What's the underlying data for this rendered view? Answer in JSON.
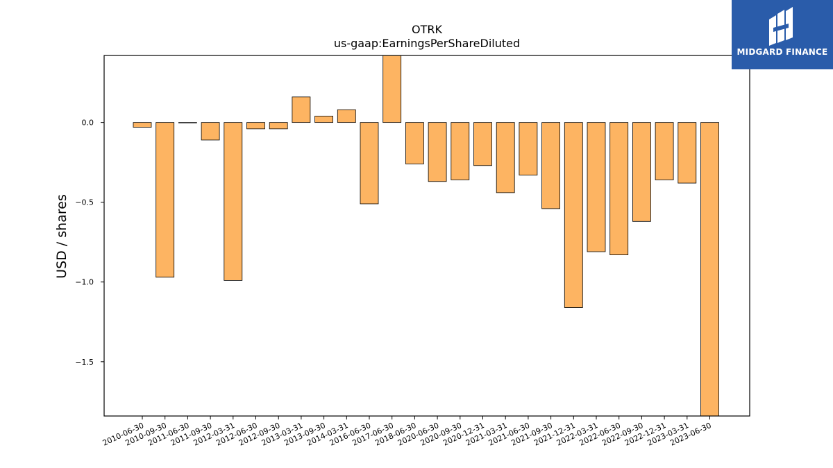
{
  "chart_data": {
    "type": "bar",
    "title": "OTRK",
    "subtitle": "us-gaap:EarningsPerShareDiluted",
    "xlabel": "",
    "ylabel": "USD / shares",
    "ylim": [
      -1.84,
      0.42
    ],
    "yticks": [
      0.0,
      -0.5,
      -1.0,
      -1.5
    ],
    "ytick_labels": [
      "0.0",
      "−0.5",
      "−1.0",
      "−1.5"
    ],
    "grid": false,
    "bar_color": "#fdb462",
    "bar_edge_color": "#000000",
    "categories": [
      "2010-06-30",
      "2010-09-30",
      "2011-06-30",
      "2011-09-30",
      "2012-03-31",
      "2012-06-30",
      "2012-09-30",
      "2013-03-31",
      "2013-09-30",
      "2014-03-31",
      "2016-06-30",
      "2017-06-30",
      "2018-06-30",
      "2020-06-30",
      "2020-09-30",
      "2020-12-31",
      "2021-03-31",
      "2021-06-30",
      "2021-09-30",
      "2021-12-31",
      "2022-03-31",
      "2022-06-30",
      "2022-09-30",
      "2022-12-31",
      "2023-03-31",
      "2023-06-30"
    ],
    "values": [
      -0.03,
      -0.97,
      0.0,
      -0.11,
      -0.99,
      -0.04,
      -0.04,
      0.16,
      0.04,
      0.08,
      -0.51,
      0.45,
      -0.26,
      -0.37,
      -0.36,
      -0.27,
      -0.44,
      -0.33,
      -0.54,
      -1.16,
      -0.81,
      -0.83,
      -0.62,
      -0.36,
      -0.38,
      -1.9
    ]
  },
  "logo": {
    "text": "MIDGARD FINANCE",
    "color": "#2a5caa"
  }
}
